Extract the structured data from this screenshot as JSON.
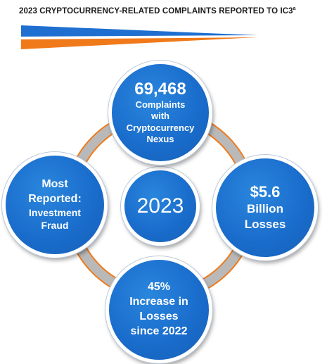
{
  "header": {
    "title": "2023 CRYPTOCURRENCY-RELATED COMPLAINTS REPORTED TO IC3",
    "title_superscript": "a"
  },
  "colors": {
    "circle_blue": "#1a6dcc",
    "stripe_blue": "#1f6fd0",
    "stripe_orange": "#f07a1a",
    "ring_gray": "#b9b9b9",
    "ring_orange": "#f07a1a"
  },
  "center": {
    "year": "2023"
  },
  "top": {
    "value": "69,468",
    "line1": "Complaints",
    "line2": "with",
    "line3": "Cryptocurrency",
    "line4": "Nexus"
  },
  "left": {
    "line1": "Most",
    "line2": "Reported:",
    "line3": "Investment",
    "line4": "Fraud"
  },
  "right": {
    "value": "$5.6",
    "line1": "Billion",
    "line2": "Losses"
  },
  "bottom": {
    "value": "45%",
    "line1": "Increase in",
    "line2": "Losses",
    "line3": "since 2022"
  }
}
